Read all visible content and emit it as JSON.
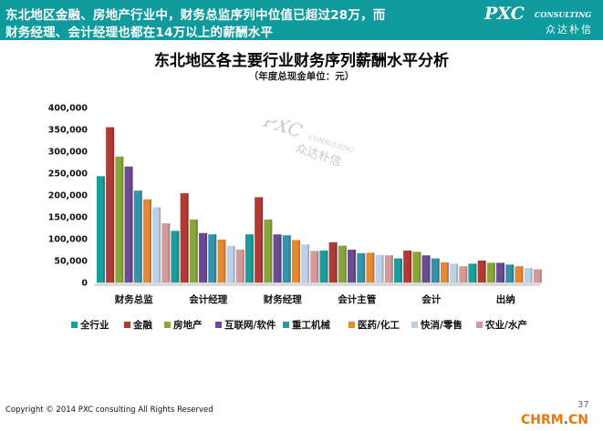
{
  "header": {
    "line1": "东北地区金融、房地产行业中，财务总监序列中位值已超过28万，而",
    "line2": "财务经理、会计经理也都在14万以上的薪酬水平",
    "logo_main": "PXC",
    "logo_sub": "CONSULTING",
    "logo_cn": "众达朴信"
  },
  "chart_data": {
    "type": "bar",
    "title": "东北地区各主要行业财务序列薪酬水平分析",
    "subtitle": "（年度总现金单位：元）",
    "categories": [
      "财务总监",
      "会计经理",
      "财务经理",
      "会计主管",
      "会计",
      "出纳"
    ],
    "ylim": [
      0,
      400000
    ],
    "yticks": [
      "0",
      "50,000",
      "100,000",
      "150,000",
      "200,000",
      "250,000",
      "300,000",
      "350,000",
      "400,000"
    ],
    "ytick_values": [
      0,
      50000,
      100000,
      150000,
      200000,
      250000,
      300000,
      350000,
      400000
    ],
    "grid": false,
    "legend_position": "bottom",
    "series": [
      {
        "name": "全行业",
        "color": "#1a9d9b",
        "values": [
          243000,
          118000,
          110000,
          73000,
          55000,
          43000
        ]
      },
      {
        "name": "金融",
        "color": "#b23a36",
        "values": [
          355000,
          204000,
          195000,
          92000,
          73000,
          50000
        ]
      },
      {
        "name": "房地产",
        "color": "#88a63c",
        "values": [
          288000,
          144000,
          144000,
          84000,
          70000,
          45000
        ]
      },
      {
        "name": "互联网/软件",
        "color": "#6a4a93",
        "values": [
          265000,
          113000,
          110000,
          75000,
          62000,
          45000
        ]
      },
      {
        "name": "重工机械",
        "color": "#3592a8",
        "values": [
          210000,
          110000,
          108000,
          67000,
          55000,
          41000
        ]
      },
      {
        "name": "医药/化工",
        "color": "#e48936",
        "values": [
          190000,
          98000,
          97000,
          68000,
          46000,
          37000
        ]
      },
      {
        "name": "快消/零售",
        "color": "#bcd0e8",
        "values": [
          172000,
          84000,
          87000,
          63000,
          43000,
          33000
        ]
      },
      {
        "name": "农业/水产",
        "color": "#d49a9a",
        "values": [
          135000,
          75000,
          72000,
          62000,
          37000,
          30000
        ]
      }
    ]
  },
  "watermark": {
    "main": "PXC",
    "sub": "CONSULTING",
    "cn": "众达朴信"
  },
  "footer": {
    "copyright": "Copyright © 2014  PXC consulting All Rights Reserved",
    "page": "37",
    "corner_logo_a": "CHRM",
    "corner_logo_dot": ".",
    "corner_logo_b": "CN"
  }
}
